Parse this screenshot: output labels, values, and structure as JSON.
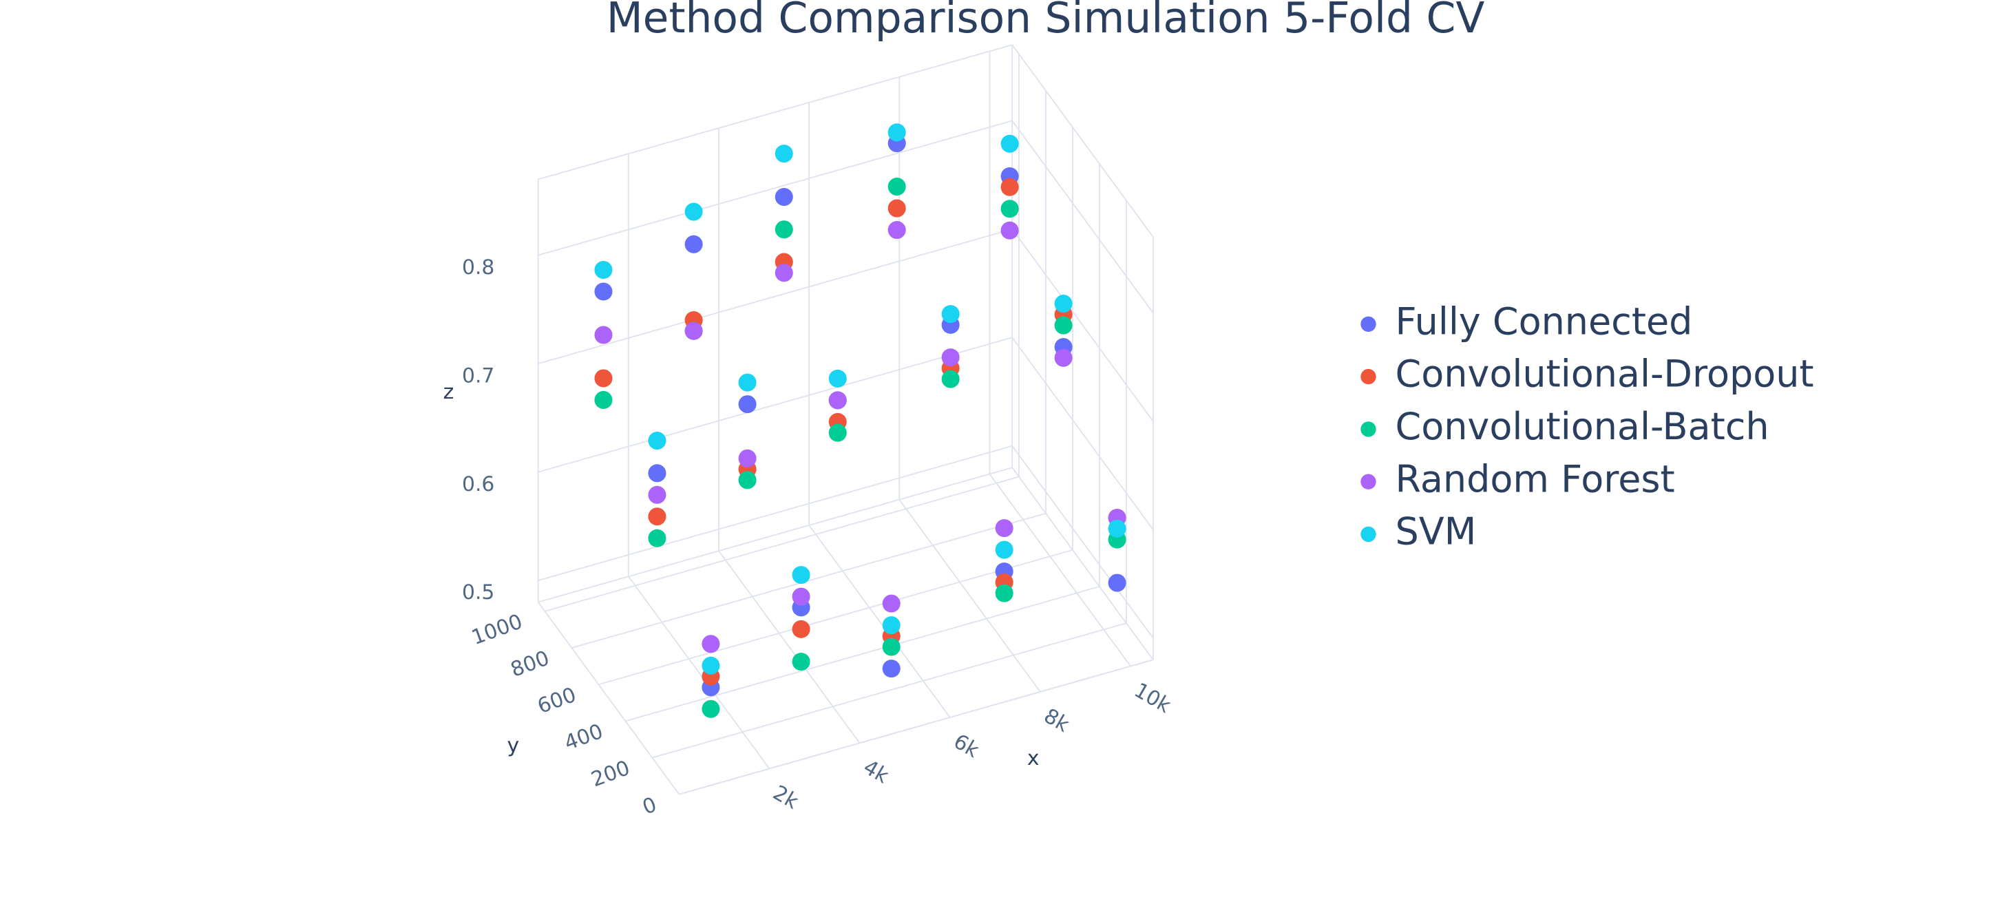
{
  "chart_data": {
    "type": "scatter3d",
    "title": "Method Comparison Simulation 5-Fold CV",
    "xlabel": "x",
    "ylabel": "y",
    "zlabel": "z",
    "xlim": [
      0,
      10500
    ],
    "ylim": [
      0,
      1050
    ],
    "zlim": [
      0.48,
      0.87
    ],
    "xticks": [
      {
        "value": 2000,
        "label": "2k"
      },
      {
        "value": 4000,
        "label": "4k"
      },
      {
        "value": 6000,
        "label": "6k"
      },
      {
        "value": 8000,
        "label": "8k"
      },
      {
        "value": 10000,
        "label": "10k"
      }
    ],
    "yticks": [
      0,
      200,
      400,
      600,
      800,
      1000
    ],
    "zticks": [
      0.5,
      0.6,
      0.7,
      0.8
    ],
    "grid": true,
    "legend": "right",
    "series": [
      {
        "name": "Fully Connected",
        "color": "#636efa",
        "x": [
          1000,
          1000,
          1000,
          3000,
          3000,
          3000,
          5000,
          5000,
          5000,
          7500,
          7500,
          7500,
          10000,
          10000,
          10000
        ],
        "y": [
          100,
          500,
          900,
          100,
          500,
          900,
          100,
          500,
          900,
          100,
          500,
          900,
          100,
          500,
          900
        ],
        "z": [
          0.55,
          0.68,
          0.78,
          0.6,
          0.72,
          0.8,
          0.52,
          0.7,
          0.82,
          0.58,
          0.74,
          0.84,
          0.54,
          0.69,
          0.78
        ]
      },
      {
        "name": "Convolutional-Dropout",
        "color": "#ef553b",
        "x": [
          1000,
          1000,
          1000,
          3000,
          3000,
          3000,
          5000,
          5000,
          5000,
          7500,
          7500,
          7500,
          10000,
          10000,
          10000
        ],
        "y": [
          100,
          500,
          900,
          100,
          500,
          900,
          100,
          500,
          900,
          100,
          500,
          900,
          100,
          500,
          900
        ],
        "z": [
          0.56,
          0.64,
          0.7,
          0.58,
          0.66,
          0.73,
          0.55,
          0.68,
          0.76,
          0.57,
          0.7,
          0.78,
          0.6,
          0.72,
          0.77
        ]
      },
      {
        "name": "Convolutional-Batch",
        "color": "#00cc96",
        "x": [
          1000,
          1000,
          1000,
          3000,
          3000,
          3000,
          5000,
          5000,
          5000,
          7500,
          7500,
          7500,
          10000,
          10000,
          10000
        ],
        "y": [
          100,
          500,
          900,
          100,
          500,
          900,
          100,
          500,
          900,
          100,
          500,
          900,
          100,
          500,
          900
        ],
        "z": [
          0.53,
          0.62,
          0.68,
          0.55,
          0.65,
          0.72,
          0.54,
          0.67,
          0.79,
          0.56,
          0.69,
          0.8,
          0.58,
          0.71,
          0.75
        ]
      },
      {
        "name": "Random Forest",
        "color": "#ab63fa",
        "x": [
          1000,
          1000,
          1000,
          3000,
          3000,
          3000,
          5000,
          5000,
          5000,
          7500,
          7500,
          7500,
          10000,
          10000,
          10000
        ],
        "y": [
          100,
          500,
          900,
          100,
          500,
          900,
          100,
          500,
          900,
          100,
          500,
          900,
          100,
          500,
          900
        ],
        "z": [
          0.59,
          0.66,
          0.74,
          0.61,
          0.67,
          0.72,
          0.58,
          0.7,
          0.75,
          0.62,
          0.71,
          0.76,
          0.6,
          0.68,
          0.73
        ]
      },
      {
        "name": "SVM",
        "color": "#19d3f3",
        "x": [
          1000,
          1000,
          1000,
          3000,
          3000,
          3000,
          5000,
          5000,
          5000,
          7500,
          7500,
          7500,
          10000,
          10000,
          10000
        ],
        "y": [
          100,
          500,
          900,
          100,
          500,
          900,
          100,
          500,
          900,
          100,
          500,
          900,
          100,
          500,
          900
        ],
        "z": [
          0.57,
          0.71,
          0.8,
          0.63,
          0.74,
          0.83,
          0.56,
          0.72,
          0.86,
          0.6,
          0.75,
          0.85,
          0.59,
          0.73,
          0.81
        ]
      }
    ]
  }
}
